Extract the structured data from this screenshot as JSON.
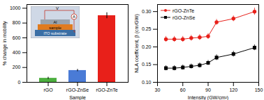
{
  "chart_data": [
    {
      "type": "bar",
      "x_label": "Sample",
      "y_label": "% change in mobility",
      "categories": [
        "rGO",
        "rGO-ZnSe",
        "rGO-ZnTe"
      ],
      "values": [
        55,
        160,
        900
      ],
      "errors": [
        15,
        15,
        40
      ],
      "colors": [
        "#4caf3f",
        "#4a7bd6",
        "#e8201a"
      ],
      "ylim": [
        0,
        1050
      ],
      "yticks": [
        0,
        200,
        400,
        600,
        800,
        1000
      ],
      "annotations": [
        "V",
        "A",
        "Al",
        "sample",
        "ITO substrate"
      ]
    },
    {
      "type": "line",
      "x_label": "Intensity (GW/cm²)",
      "y_label": "NLA coefficient, β (cm/GW)",
      "x": [
        40,
        50,
        60,
        70,
        80,
        90,
        100,
        120,
        145
      ],
      "series": [
        {
          "name": "rGO-ZnTe",
          "color": "#e8201a",
          "marker": "circle",
          "values": [
            0.222,
            0.222,
            0.222,
            0.225,
            0.227,
            0.23,
            0.27,
            0.28,
            0.3
          ],
          "errors": [
            0.008,
            0.008,
            0.008,
            0.008,
            0.008,
            0.008,
            0.008,
            0.008,
            0.01
          ]
        },
        {
          "name": "rGO-ZnSe",
          "color": "#000000",
          "marker": "square",
          "values": [
            0.14,
            0.14,
            0.142,
            0.145,
            0.148,
            0.155,
            0.17,
            0.18,
            0.198
          ],
          "errors": [
            0.007,
            0.007,
            0.007,
            0.007,
            0.007,
            0.007,
            0.008,
            0.008,
            0.008
          ]
        }
      ],
      "xlim": [
        30,
        150
      ],
      "xticks": [
        30,
        60,
        90,
        120,
        150
      ],
      "ylim": [
        0.1,
        0.32
      ],
      "yticks": [
        {
          "value": 0.1,
          "label": "0.10"
        },
        {
          "value": 0.15,
          "label": "0.15"
        },
        {
          "value": 0.2,
          "label": "0.20"
        },
        {
          "value": 0.25,
          "label": "0.25"
        },
        {
          "value": 0.3,
          "label": "0.30"
        }
      ],
      "legend": "upper left"
    }
  ]
}
